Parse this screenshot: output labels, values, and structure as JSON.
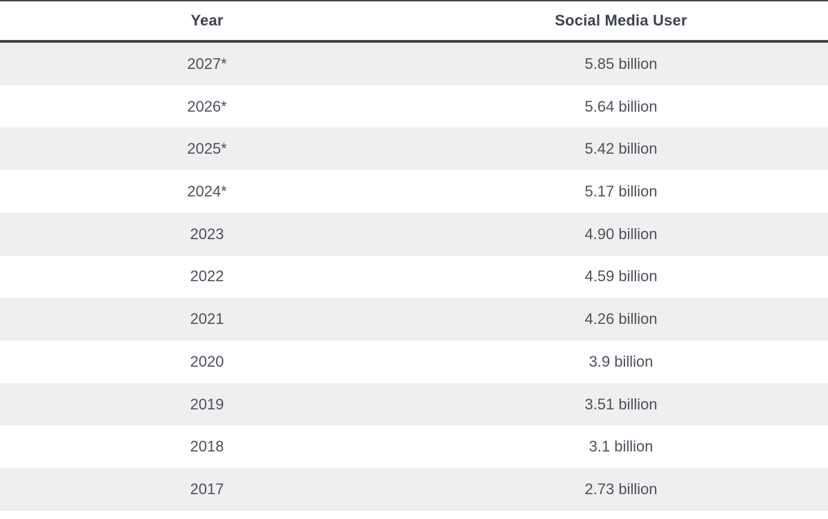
{
  "table": {
    "columns": {
      "year": "Year",
      "users": "Social Media User"
    },
    "rows": [
      {
        "year": "2027*",
        "users": "5.85 billion"
      },
      {
        "year": "2026*",
        "users": "5.64 billion"
      },
      {
        "year": "2025*",
        "users": "5.42 billion"
      },
      {
        "year": "2024*",
        "users": "5.17 billion"
      },
      {
        "year": "2023",
        "users": "4.90 billion"
      },
      {
        "year": "2022",
        "users": "4.59 billion"
      },
      {
        "year": "2021",
        "users": "4.26 billion"
      },
      {
        "year": "2020",
        "users": "3.9 billion"
      },
      {
        "year": "2019",
        "users": "3.51 billion"
      },
      {
        "year": "2018",
        "users": "3.1 billion"
      },
      {
        "year": "2017",
        "users": "2.73 billion"
      }
    ],
    "colors": {
      "header_border": "#40454f",
      "stripe": "#efefef",
      "header_text": "#3d434d",
      "body_text": "#4b515c"
    }
  }
}
